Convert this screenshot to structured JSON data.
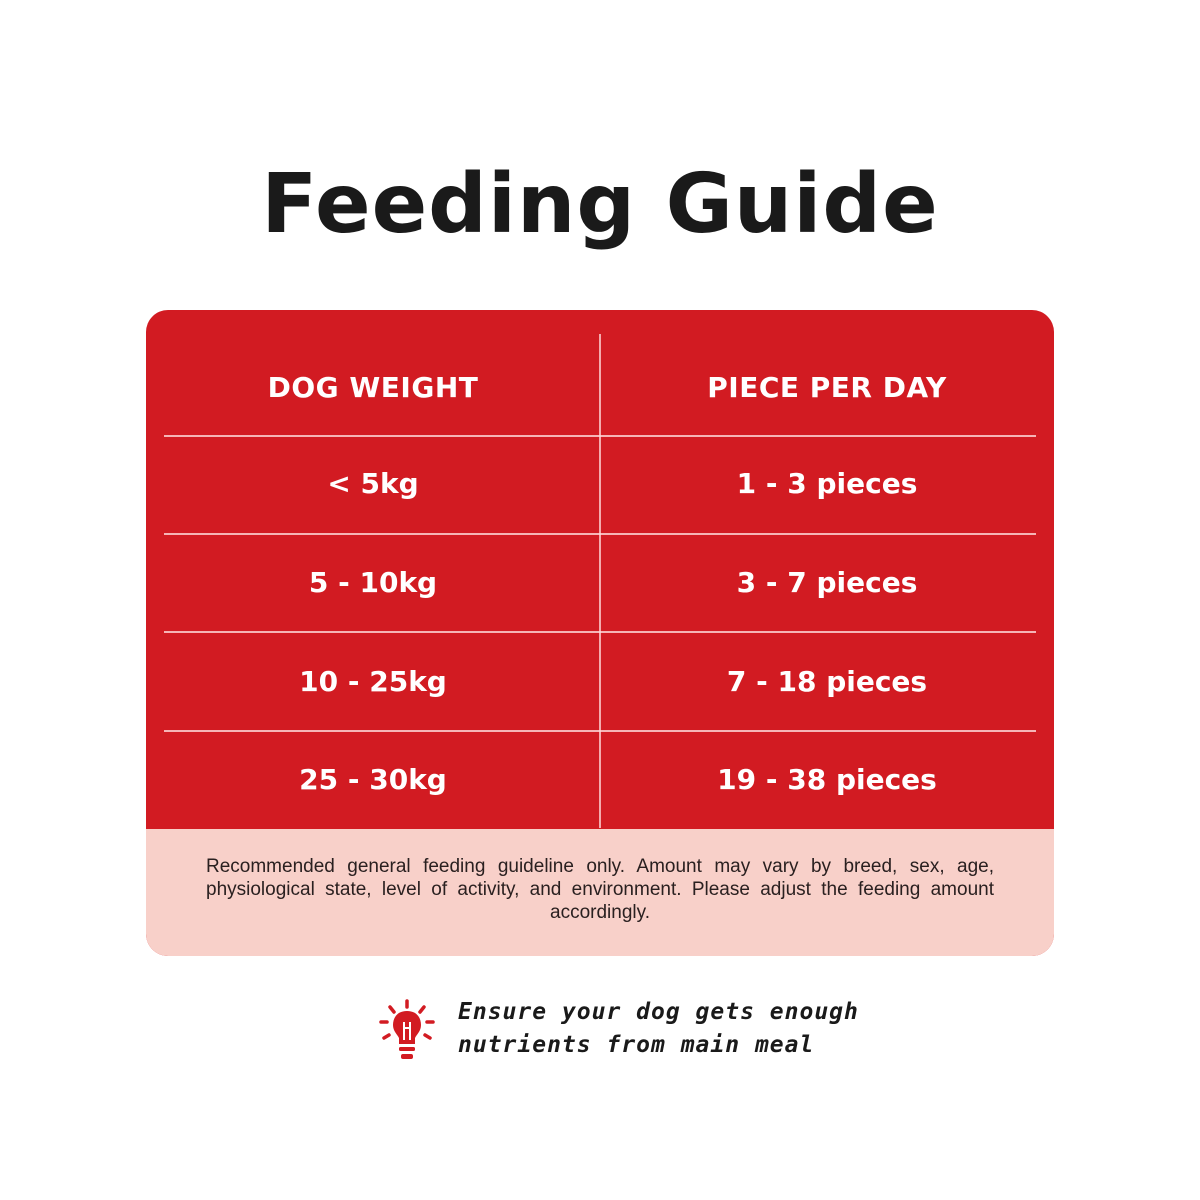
{
  "title": "Feeding Guide",
  "colors": {
    "card_red": "#d21b22",
    "note_background": "#f8d0c9",
    "text_dark": "#1a1a1a",
    "accent_red": "#d21b22"
  },
  "table": {
    "headers": [
      "DOG WEIGHT",
      "PIECE PER DAY"
    ],
    "rows": [
      [
        "< 5kg",
        "1 - 3 pieces"
      ],
      [
        "5 - 10kg",
        "3 - 7 pieces"
      ],
      [
        "10 - 25kg",
        "7 - 18 pieces"
      ],
      [
        "25 - 30kg",
        "19 - 38 pieces"
      ]
    ]
  },
  "note": "Recommended general feeding guideline only. Amount may vary by breed, sex, age, physiological state, level of activity, and environment. Please adjust the feeding amount accordingly.",
  "tip": {
    "icon": "lightbulb-icon",
    "line1": "Ensure your dog gets enough",
    "line2": "nutrients from main meal"
  }
}
